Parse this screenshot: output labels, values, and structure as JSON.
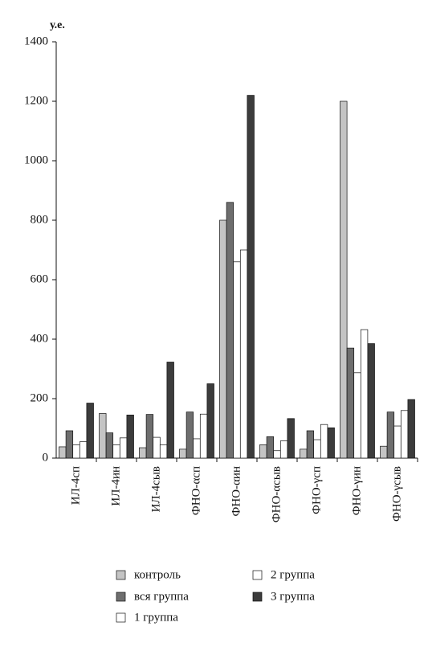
{
  "chart_data": {
    "type": "bar",
    "y_label": "у.е.",
    "categories": [
      "ИЛ-4сп",
      "ИЛ-4ин",
      "ИЛ-4сыв",
      "ФНО-αсп",
      "ФНО-αин",
      "ФНО-αсыв",
      "ФНО-γсп",
      "ФНО-γин",
      "ФНО-γсыв"
    ],
    "series": [
      {
        "name": "контроль",
        "color": "#c4c4c4",
        "values": [
          38,
          150,
          35,
          30,
          800,
          45,
          30,
          1200,
          40
        ]
      },
      {
        "name": "вся группа",
        "color": "#6e6e6e",
        "values": [
          92,
          85,
          147,
          155,
          860,
          72,
          92,
          370,
          155
        ]
      },
      {
        "name": "1 группа",
        "color": "#ffffff",
        "values": [
          45,
          45,
          70,
          65,
          660,
          25,
          62,
          287,
          108
        ]
      },
      {
        "name": "2 группа",
        "color": "#ffffff",
        "values": [
          55,
          68,
          45,
          148,
          700,
          58,
          113,
          432,
          160
        ]
      },
      {
        "name": "3 группа",
        "color": "#3c3c3c",
        "values": [
          185,
          145,
          323,
          250,
          1220,
          133,
          102,
          385,
          197
        ]
      }
    ],
    "ylim": [
      0,
      1400
    ],
    "yticks": [
      0,
      200,
      400,
      600,
      800,
      1000,
      1200,
      1400
    ]
  }
}
